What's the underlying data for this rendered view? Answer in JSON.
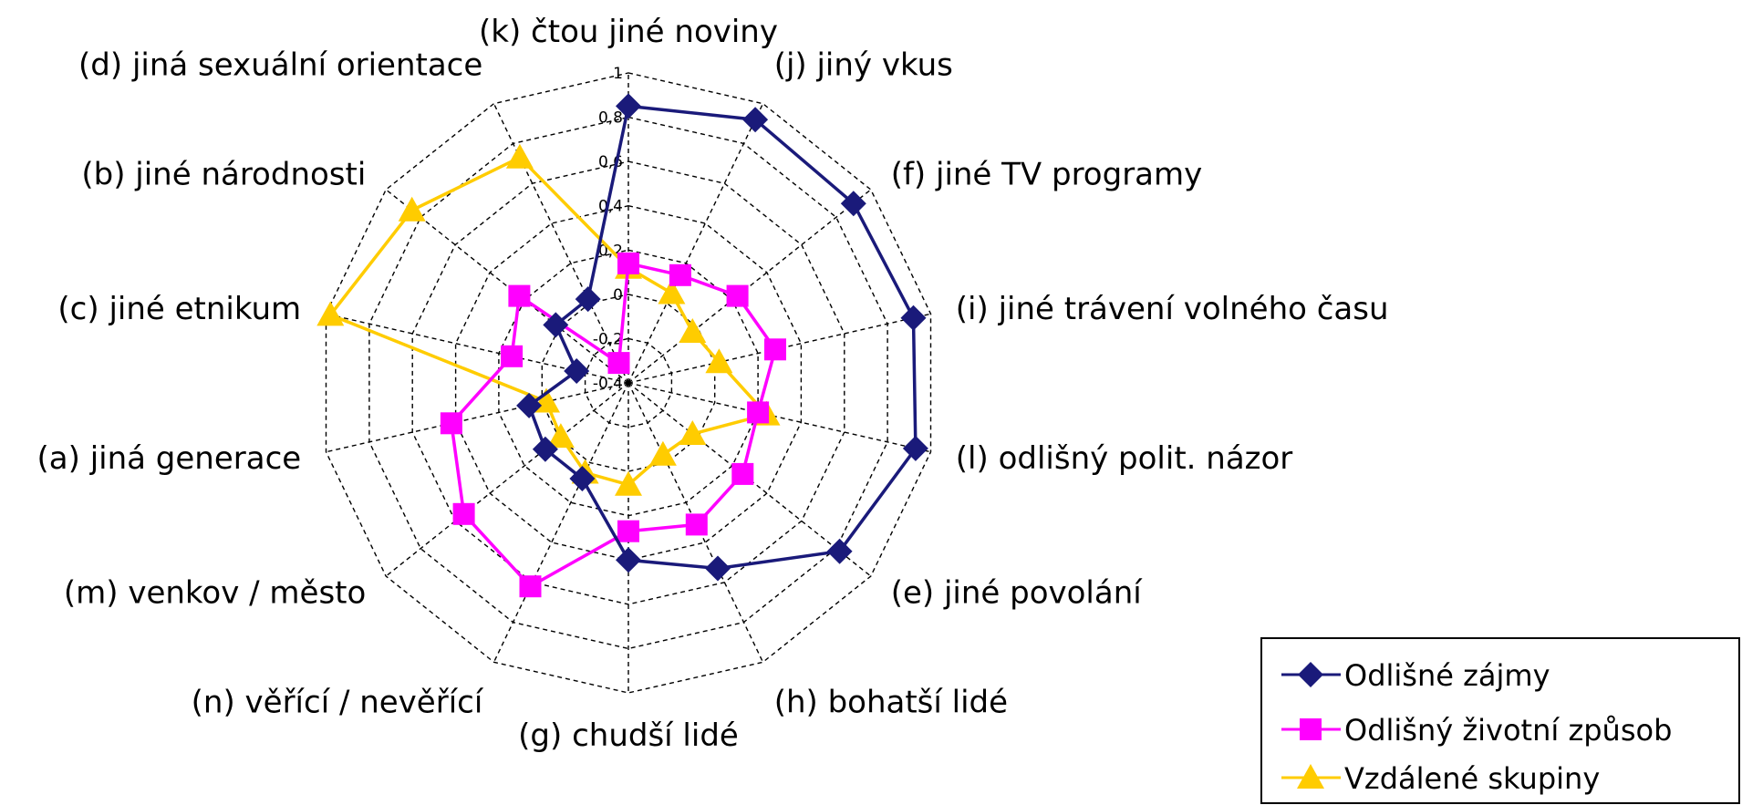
{
  "chart_data": {
    "type": "radar",
    "categories": [
      "(k) čtou jiné noviny",
      "(j) jiný vkus",
      "(f) jiné TV programy",
      "(i) jiné trávení volného času",
      "(l) odlišný polit. názor",
      "(e) jiné povolání",
      "(h) bohatší lidé",
      "(g) chudší lidé",
      "(n) věřící / nevěřící",
      "(m) venkov / město",
      "(a) jiná generace",
      "(c) jiné etnikum",
      "(b) jiné národnosti",
      "(d) jiná sexuální orientace"
    ],
    "rlim": [
      -0.4,
      1
    ],
    "ticks": [
      -0.4,
      -0.2,
      0,
      0.2,
      0.4,
      0.6,
      0.8,
      1
    ],
    "tick_labels": [
      "-0,4",
      "-0,2",
      "0",
      "0,2",
      "0,4",
      "0,6",
      "0,8",
      "1"
    ],
    "grid": true,
    "legend_position": "bottom-right",
    "series": [
      {
        "name": "Odlišné zájmy",
        "color": "#1a1a7a",
        "marker": "diamond",
        "values": [
          0.85,
          0.92,
          0.9,
          0.92,
          0.93,
          0.82,
          0.53,
          0.4,
          0.08,
          0.08,
          0.06,
          -0.16,
          0.02,
          0.02
        ]
      },
      {
        "name": "Odlišný životní způsob",
        "color": "#ff00ff",
        "marker": "square",
        "values": [
          0.14,
          0.14,
          0.23,
          0.28,
          0.2,
          0.26,
          0.31,
          0.27,
          0.62,
          0.55,
          0.42,
          0.14,
          0.23,
          -0.3
        ]
      },
      {
        "name": "Vzdálené skupiny",
        "color": "#ffcc00",
        "marker": "triangle",
        "values": [
          0.12,
          0.05,
          -0.03,
          0.02,
          0.24,
          -0.03,
          -0.04,
          0.06,
          0.05,
          -0.01,
          -0.02,
          0.98,
          0.85,
          0.73
        ]
      }
    ]
  }
}
